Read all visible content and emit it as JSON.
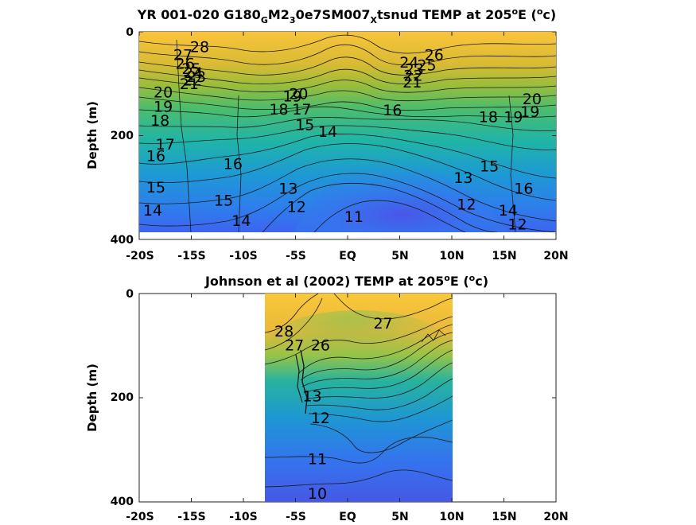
{
  "chart_data": [
    {
      "type": "heatmap",
      "title_parts": [
        "YR 001-020 G180",
        "G",
        "M2",
        "3",
        "0e7SM007",
        "X",
        "tsnud TEMP at 205",
        "o",
        "E (",
        "o",
        "c)"
      ],
      "ylabel": "Depth (m)",
      "x_ticks": [
        "-20S",
        "-15S",
        "-10S",
        "-5S",
        "EQ",
        "5N",
        "10N",
        "15N",
        "20N"
      ],
      "y_ticks": [
        "0",
        "200",
        "400"
      ],
      "xlim": [
        -20,
        20
      ],
      "ylim": [
        400,
        0
      ],
      "data_extent": {
        "x": [
          -20,
          20
        ],
        "y": [
          0,
          385
        ]
      },
      "contour_labels": [
        {
          "text": "28",
          "x": -14.2,
          "y": 30
        },
        {
          "text": "27",
          "x": -15.8,
          "y": 45
        },
        {
          "text": "26",
          "x": -15.6,
          "y": 62
        },
        {
          "text": "25",
          "x": -15.0,
          "y": 72
        },
        {
          "text": "24",
          "x": -14.8,
          "y": 80
        },
        {
          "text": "23",
          "x": -14.5,
          "y": 87
        },
        {
          "text": "22",
          "x": -14.9,
          "y": 94
        },
        {
          "text": "21",
          "x": -15.2,
          "y": 101
        },
        {
          "text": "20",
          "x": -17.7,
          "y": 117
        },
        {
          "text": "19",
          "x": -17.7,
          "y": 145
        },
        {
          "text": "18",
          "x": -18.0,
          "y": 172
        },
        {
          "text": "17",
          "x": -17.5,
          "y": 218
        },
        {
          "text": "16",
          "x": -18.4,
          "y": 240
        },
        {
          "text": "15",
          "x": -18.4,
          "y": 300
        },
        {
          "text": "14",
          "x": -18.7,
          "y": 345
        },
        {
          "text": "16",
          "x": -11.0,
          "y": 255
        },
        {
          "text": "15",
          "x": -11.9,
          "y": 326
        },
        {
          "text": "14",
          "x": -10.2,
          "y": 365
        },
        {
          "text": "20",
          "x": -4.7,
          "y": 120
        },
        {
          "text": "19",
          "x": -5.3,
          "y": 125
        },
        {
          "text": "18",
          "x": -6.6,
          "y": 150
        },
        {
          "text": "17",
          "x": -4.4,
          "y": 150
        },
        {
          "text": "15",
          "x": -4.1,
          "y": 180
        },
        {
          "text": "14",
          "x": -1.9,
          "y": 193
        },
        {
          "text": "13",
          "x": -5.7,
          "y": 303
        },
        {
          "text": "12",
          "x": -4.9,
          "y": 338
        },
        {
          "text": "11",
          "x": 0.6,
          "y": 357
        },
        {
          "text": "26",
          "x": 8.3,
          "y": 45
        },
        {
          "text": "25",
          "x": 7.6,
          "y": 65
        },
        {
          "text": "24",
          "x": 5.9,
          "y": 60
        },
        {
          "text": "23",
          "x": 6.4,
          "y": 73
        },
        {
          "text": "22",
          "x": 6.3,
          "y": 85
        },
        {
          "text": "21",
          "x": 6.2,
          "y": 98
        },
        {
          "text": "16",
          "x": 4.3,
          "y": 152
        },
        {
          "text": "13",
          "x": 11.1,
          "y": 282
        },
        {
          "text": "12",
          "x": 11.4,
          "y": 333
        },
        {
          "text": "15",
          "x": 13.6,
          "y": 260
        },
        {
          "text": "14",
          "x": 15.4,
          "y": 345
        },
        {
          "text": "12",
          "x": 16.3,
          "y": 372
        },
        {
          "text": "16",
          "x": 16.9,
          "y": 303
        },
        {
          "text": "19",
          "x": 15.9,
          "y": 165
        },
        {
          "text": "18",
          "x": 13.5,
          "y": 165
        },
        {
          "text": "19",
          "x": 17.5,
          "y": 155
        },
        {
          "text": "20",
          "x": 17.7,
          "y": 130
        }
      ]
    },
    {
      "type": "heatmap",
      "title_parts": [
        "Johnson et al (2002) TEMP at 205",
        "o",
        "E (",
        "o",
        "c)"
      ],
      "ylabel": "Depth (m)",
      "x_ticks": [
        "-20S",
        "-15S",
        "-10S",
        "-5S",
        "EQ",
        "5N",
        "10N",
        "15N",
        "20N"
      ],
      "y_ticks": [
        "0",
        "200",
        "400"
      ],
      "xlim": [
        -20,
        20
      ],
      "ylim": [
        400,
        0
      ],
      "data_extent": {
        "x": [
          -8,
          10
        ],
        "y": [
          0,
          400
        ]
      },
      "contour_labels": [
        {
          "text": "28",
          "x": -6.1,
          "y": 73
        },
        {
          "text": "27",
          "x": -5.1,
          "y": 100
        },
        {
          "text": "26",
          "x": -2.6,
          "y": 100
        },
        {
          "text": "27",
          "x": 3.4,
          "y": 58
        },
        {
          "text": "13",
          "x": -3.4,
          "y": 198
        },
        {
          "text": "12",
          "x": -2.6,
          "y": 240
        },
        {
          "text": "11",
          "x": -2.9,
          "y": 318
        },
        {
          "text": "10",
          "x": -2.9,
          "y": 385
        }
      ]
    }
  ]
}
